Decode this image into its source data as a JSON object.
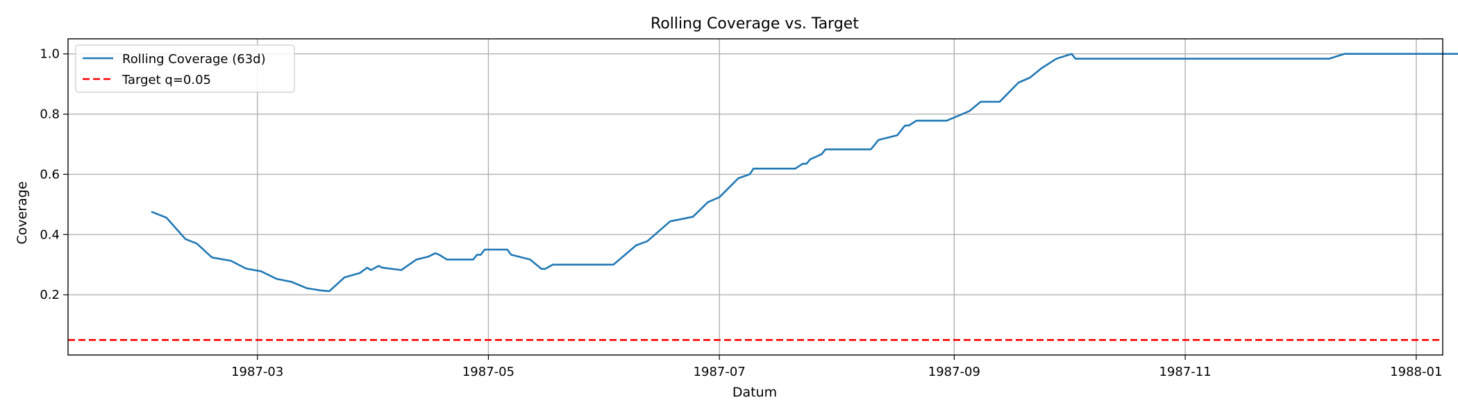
{
  "chart_data": {
    "type": "line",
    "title": "Rolling Coverage vs. Target",
    "xlabel": "Datum",
    "ylabel": "Coverage",
    "x_ticks": [
      "1987-03",
      "1987-05",
      "1987-07",
      "1987-09",
      "1987-11",
      "1988-01"
    ],
    "y_ticks": [
      "0.2",
      "0.4",
      "0.6",
      "0.8",
      "1.0"
    ],
    "xlim": [
      "1987-01-10",
      "1988-01-08"
    ],
    "ylim": [
      0.0,
      1.05
    ],
    "grid": true,
    "legend_position": "upper-left",
    "series": [
      {
        "name": "Rolling Coverage (63d)",
        "color": "#1f77b4",
        "style": "solid",
        "points": [
          [
            "1987-02-01",
            0.476
          ],
          [
            "1987-02-05",
            0.456
          ],
          [
            "1987-02-10",
            0.385
          ],
          [
            "1987-02-13",
            0.37
          ],
          [
            "1987-02-17",
            0.324
          ],
          [
            "1987-02-22",
            0.313
          ],
          [
            "1987-02-26",
            0.287
          ],
          [
            "1987-03-02",
            0.278
          ],
          [
            "1987-03-06",
            0.253
          ],
          [
            "1987-03-10",
            0.243
          ],
          [
            "1987-03-14",
            0.222
          ],
          [
            "1987-03-18",
            0.214
          ],
          [
            "1987-03-20",
            0.212
          ],
          [
            "1987-03-24",
            0.258
          ],
          [
            "1987-03-28",
            0.272
          ],
          [
            "1987-03-30",
            0.29
          ],
          [
            "1987-03-31",
            0.282
          ],
          [
            "1987-04-02",
            0.296
          ],
          [
            "1987-04-03",
            0.29
          ],
          [
            "1987-04-08",
            0.282
          ],
          [
            "1987-04-12",
            0.317
          ],
          [
            "1987-04-15",
            0.326
          ],
          [
            "1987-04-17",
            0.338
          ],
          [
            "1987-04-18",
            0.333
          ],
          [
            "1987-04-20",
            0.317
          ],
          [
            "1987-04-27",
            0.317
          ],
          [
            "1987-04-28",
            0.333
          ],
          [
            "1987-04-29",
            0.333
          ],
          [
            "1987-04-30",
            0.35
          ],
          [
            "1987-05-06",
            0.35
          ],
          [
            "1987-05-07",
            0.333
          ],
          [
            "1987-05-12",
            0.317
          ],
          [
            "1987-05-15",
            0.286
          ],
          [
            "1987-05-16",
            0.286
          ],
          [
            "1987-05-18",
            0.3
          ],
          [
            "1987-06-03",
            0.3
          ],
          [
            "1987-06-09",
            0.364
          ],
          [
            "1987-06-12",
            0.378
          ],
          [
            "1987-06-18",
            0.444
          ],
          [
            "1987-06-24",
            0.459
          ],
          [
            "1987-06-28",
            0.508
          ],
          [
            "1987-07-01",
            0.524
          ],
          [
            "1987-07-06",
            0.587
          ],
          [
            "1987-07-09",
            0.6
          ],
          [
            "1987-07-10",
            0.619
          ],
          [
            "1987-07-21",
            0.619
          ],
          [
            "1987-07-23",
            0.635
          ],
          [
            "1987-07-24",
            0.635
          ],
          [
            "1987-07-25",
            0.65
          ],
          [
            "1987-07-28",
            0.667
          ],
          [
            "1987-07-29",
            0.683
          ],
          [
            "1987-08-10",
            0.683
          ],
          [
            "1987-08-12",
            0.714
          ],
          [
            "1987-08-17",
            0.73
          ],
          [
            "1987-08-19",
            0.762
          ],
          [
            "1987-08-20",
            0.762
          ],
          [
            "1987-08-22",
            0.778
          ],
          [
            "1987-08-30",
            0.778
          ],
          [
            "1987-09-02",
            0.794
          ],
          [
            "1987-09-05",
            0.81
          ],
          [
            "1987-09-08",
            0.841
          ],
          [
            "1987-09-13",
            0.841
          ],
          [
            "1987-09-18",
            0.905
          ],
          [
            "1987-09-21",
            0.921
          ],
          [
            "1987-09-24",
            0.952
          ],
          [
            "1987-09-28",
            0.984
          ],
          [
            "1987-10-02",
            1.0
          ],
          [
            "1987-10-03",
            0.984
          ],
          [
            "1987-12-09",
            0.984
          ],
          [
            "1987-12-13",
            1.0
          ],
          [
            "1988-02-04",
            1.0
          ]
        ]
      },
      {
        "name": "Target q=0.05",
        "color": "#ff0000",
        "style": "dashed",
        "constant": 0.05
      }
    ]
  }
}
